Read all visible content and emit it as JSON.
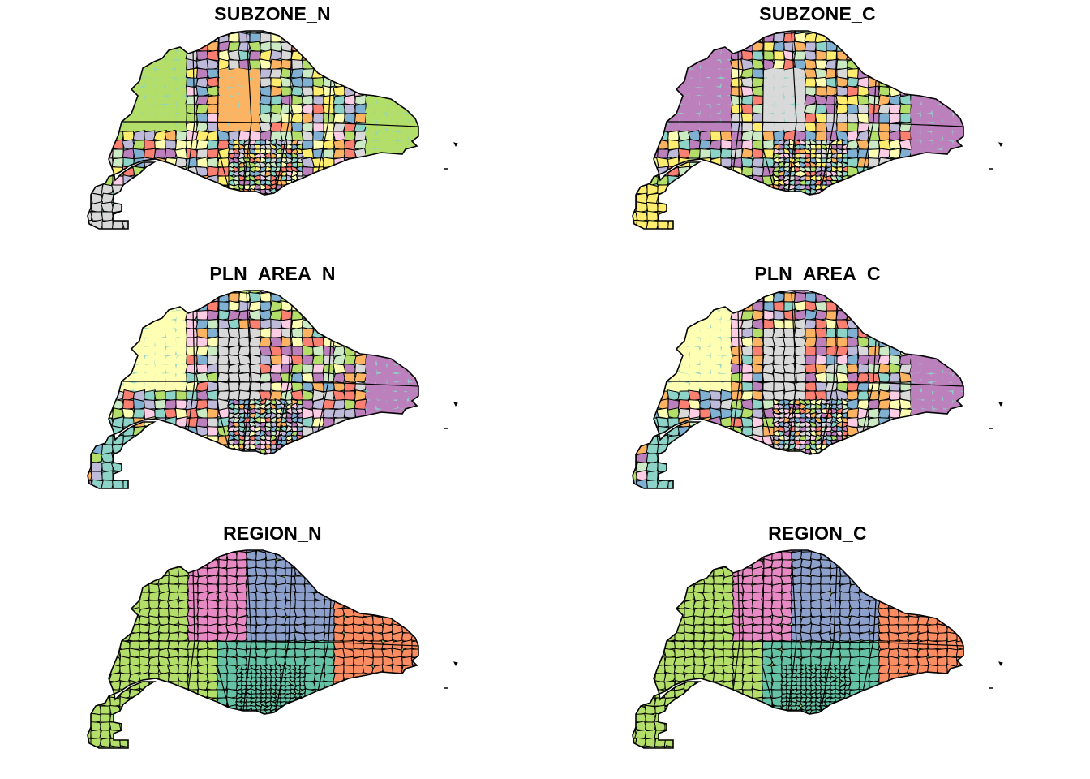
{
  "figure": {
    "panels": [
      {
        "title": "SUBZONE_N",
        "variable": "SUBZONE_N",
        "scheme": "subzone",
        "palette": [
          "#8DD3C7",
          "#FFFFB3",
          "#BEBADA",
          "#FB8072",
          "#80B1D3",
          "#FDB462",
          "#B3DE69",
          "#FCCDE5",
          "#D9D9D9",
          "#BC80BD",
          "#CCEBC5",
          "#FFED6F"
        ]
      },
      {
        "title": "SUBZONE_C",
        "variable": "SUBZONE_C",
        "scheme": "subzone",
        "palette": [
          "#8DD3C7",
          "#FFFFB3",
          "#BEBADA",
          "#FB8072",
          "#80B1D3",
          "#FDB462",
          "#B3DE69",
          "#FCCDE5",
          "#D9D9D9",
          "#BC80BD",
          "#CCEBC5",
          "#FFED6F"
        ]
      },
      {
        "title": "PLN_AREA_N",
        "variable": "PLN_AREA_N",
        "scheme": "planning",
        "palette": [
          "#8DD3C7",
          "#FFFFB3",
          "#BEBADA",
          "#FB8072",
          "#80B1D3",
          "#FDB462",
          "#B3DE69",
          "#FCCDE5",
          "#D9D9D9",
          "#BC80BD",
          "#CCEBC5"
        ]
      },
      {
        "title": "PLN_AREA_C",
        "variable": "PLN_AREA_C",
        "scheme": "planning",
        "palette": [
          "#8DD3C7",
          "#FFFFB3",
          "#BEBADA",
          "#FB8072",
          "#80B1D3",
          "#FDB462",
          "#B3DE69",
          "#FCCDE5",
          "#D9D9D9",
          "#BC80BD",
          "#CCEBC5"
        ]
      },
      {
        "title": "REGION_N",
        "variable": "REGION_N",
        "scheme": "region",
        "palette": [
          "#B3DE69",
          "#E78AC3",
          "#8DA0CB",
          "#66C2A5",
          "#FC8D62"
        ]
      },
      {
        "title": "REGION_C",
        "variable": "REGION_C",
        "scheme": "region",
        "palette": [
          "#B3DE69",
          "#E78AC3",
          "#8DA0CB",
          "#66C2A5",
          "#FC8D62"
        ]
      }
    ]
  }
}
